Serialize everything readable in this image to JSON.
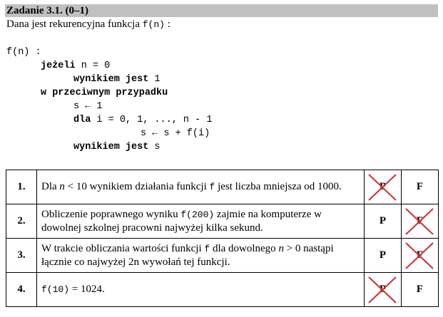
{
  "header": {
    "title": "Zadanie 3.1. (0–1)"
  },
  "intro": {
    "text": "Dana jest rekurencyjna funkcja ",
    "fn": "f(n)",
    "suffix": " :"
  },
  "code": {
    "line1": "f(n) :",
    "if_kw": "jeżeli",
    "if_cond": " n = 0",
    "result_kw": "wynikiem jest",
    "result1_val": " 1",
    "else_kw": "w przeciwnym przypadku",
    "assign": "s ← 1",
    "for_kw": "dla",
    "for_rest": " i = 0, 1, ..., n - 1",
    "loop_body": "s ← s + f(i)",
    "result2_kw": "wynikiem jest",
    "result2_val": " s"
  },
  "rows": [
    {
      "num": "1.",
      "pre": "Dla ",
      "n": "n",
      "mid": " < 10 wynikiem działania funkcji ",
      "f": "f",
      "post": " jest liczba mniejsza od 1000.",
      "p": "P",
      "f_label": "F",
      "crossed": "P"
    },
    {
      "num": "2.",
      "pre": "Obliczenie poprawnego wyniku ",
      "f": "f(200)",
      "post": " zajmie na komputerze w dowolnej szkolnej pracowni najwyżej kilka sekund.",
      "p": "P",
      "f_label": "F",
      "crossed": "F"
    },
    {
      "num": "3.",
      "pre": "W trakcie obliczania wartości funkcji ",
      "f": "f",
      "mid": " dla dowolnego ",
      "n": "n",
      "post": " > 0 nastąpi łącznie co najwyżej 2n wywołań tej funkcji.",
      "p": "P",
      "f_label": "F",
      "crossed": "F"
    },
    {
      "num": "4.",
      "f": "f(10)",
      "post": " = 1024.",
      "p": "P",
      "f_label": "F",
      "crossed": "P"
    }
  ]
}
